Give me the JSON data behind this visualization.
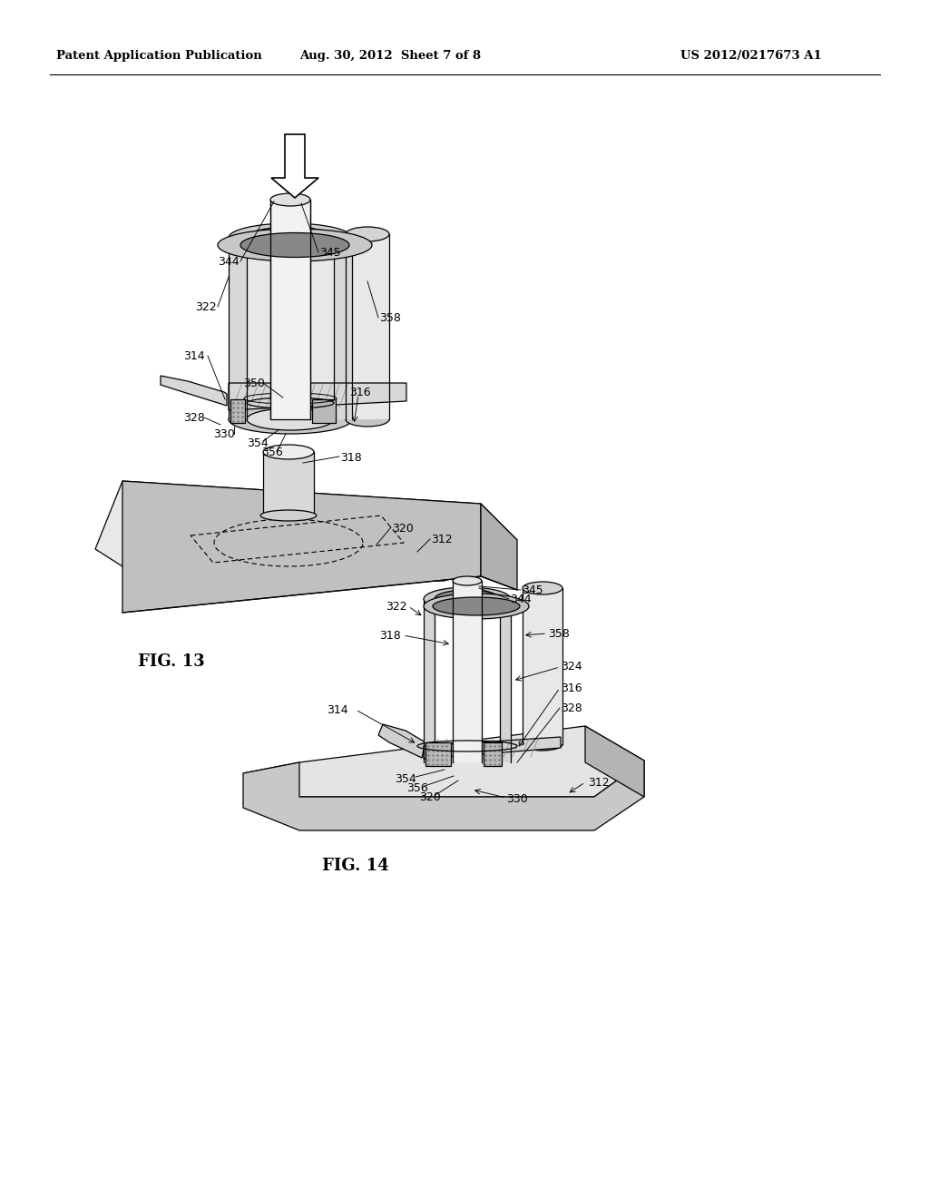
{
  "bg_color": "#ffffff",
  "header_left": "Patent Application Publication",
  "header_center": "Aug. 30, 2012  Sheet 7 of 8",
  "header_right": "US 2012/0217673 A1",
  "fig13_label": "FIG. 13",
  "fig14_label": "FIG. 14",
  "header_font_size": 9.5,
  "label_font_size": 13,
  "ref_font_size": 9,
  "line_color": "#000000"
}
